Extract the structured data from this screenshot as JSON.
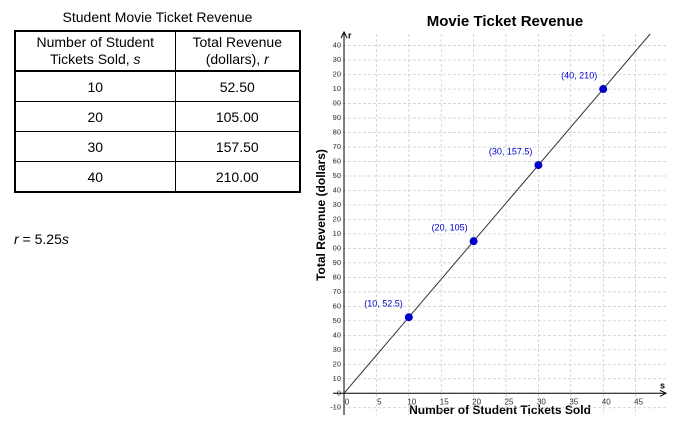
{
  "table": {
    "title": "Student Movie Ticket Revenue",
    "header": [
      {
        "text": "Number of Student Tickets Sold,",
        "var": "s"
      },
      {
        "text": "Total Revenue (dollars),",
        "var": "r"
      }
    ],
    "rows": [
      [
        "10",
        "52.50"
      ],
      [
        "20",
        "105.00"
      ],
      [
        "30",
        "157.50"
      ],
      [
        "40",
        "210.00"
      ]
    ]
  },
  "equation": [
    "r",
    " = 5.25",
    "s"
  ],
  "chart_data": {
    "type": "scatter",
    "title": "Movie Ticket Revenue",
    "x_label": "Number of Student Tickets Sold",
    "y_label": "Total Revenue (dollars)",
    "x_axis_name": "s",
    "y_axis_name": "r",
    "x": [
      10,
      20,
      30,
      40
    ],
    "series": [
      {
        "color": "#0000cc",
        "values": [
          52.5,
          105,
          157.5,
          210
        ],
        "value_labels": [
          "(10, 52.5)",
          "(20, 105)",
          "(30, 157.5)",
          "(40, 210)"
        ]
      }
    ],
    "fit_line": true,
    "line_color": "#333333",
    "xlim": [
      -1.7,
      50
    ],
    "ylim": [
      -15,
      248
    ],
    "xticks": [
      0,
      5,
      10,
      15,
      20,
      25,
      30,
      35,
      40,
      45
    ],
    "yticks": [
      -10,
      0,
      10,
      20,
      30,
      40,
      50,
      60,
      70,
      80,
      90,
      {
        "value": 100,
        "label": "00"
      },
      {
        "value": 110,
        "label": "10"
      },
      {
        "value": 120,
        "label": "20"
      },
      {
        "value": 130,
        "label": "30"
      },
      {
        "value": 140,
        "label": "40"
      },
      {
        "value": 150,
        "label": "50"
      },
      {
        "value": 160,
        "label": "60"
      },
      {
        "value": 170,
        "label": "70"
      },
      {
        "value": 180,
        "label": "80"
      },
      {
        "value": 190,
        "label": "90"
      },
      {
        "value": 200,
        "label": "00"
      },
      {
        "value": 210,
        "label": "10"
      },
      {
        "value": 220,
        "label": "20"
      },
      {
        "value": 230,
        "label": "30"
      },
      {
        "value": 240,
        "label": "40"
      }
    ],
    "grid": true
  }
}
